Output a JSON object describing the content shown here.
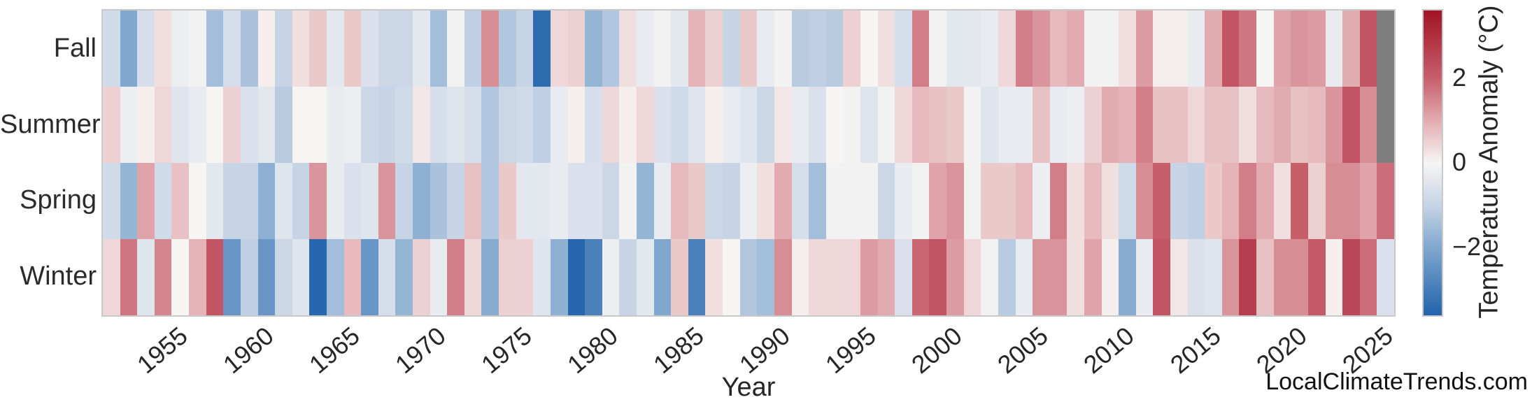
{
  "figure": {
    "watermark": "LocalClimateTrends.com"
  },
  "chart_data": {
    "type": "heatmap",
    "title": "",
    "xlabel": "Year",
    "ylabel": "",
    "rows": [
      "Fall",
      "Summer",
      "Spring",
      "Winter"
    ],
    "years": [
      1951,
      1952,
      1953,
      1954,
      1955,
      1956,
      1957,
      1958,
      1959,
      1960,
      1961,
      1962,
      1963,
      1964,
      1965,
      1966,
      1967,
      1968,
      1969,
      1970,
      1971,
      1972,
      1973,
      1974,
      1975,
      1976,
      1977,
      1978,
      1979,
      1980,
      1981,
      1982,
      1983,
      1984,
      1985,
      1986,
      1987,
      1988,
      1989,
      1990,
      1991,
      1992,
      1993,
      1994,
      1995,
      1996,
      1997,
      1998,
      1999,
      2000,
      2001,
      2002,
      2003,
      2004,
      2005,
      2006,
      2007,
      2008,
      2009,
      2010,
      2011,
      2012,
      2013,
      2014,
      2015,
      2016,
      2017,
      2018,
      2019,
      2020,
      2021,
      2022,
      2023,
      2024,
      2025
    ],
    "x_tick_years": [
      1955,
      1960,
      1965,
      1970,
      1975,
      1980,
      1985,
      1990,
      1995,
      2000,
      2005,
      2010,
      2015,
      2020,
      2025
    ],
    "values": [
      [
        -0.8,
        -2.0,
        -0.7,
        0.3,
        -0.2,
        -0.1,
        -1.5,
        -0.7,
        -1.4,
        0.1,
        -1.0,
        0.3,
        0.6,
        -0.4,
        0.6,
        -0.6,
        -0.9,
        -0.9,
        -0.4,
        -1.5,
        -0.1,
        -1.1,
        1.4,
        -1.3,
        -1.0,
        -3.4,
        0.4,
        0.5,
        -1.7,
        -1.3,
        0.3,
        -0.3,
        -0.1,
        -0.4,
        0.9,
        0.5,
        -1.0,
        0.6,
        -0.3,
        -0.1,
        -1.2,
        -1.1,
        -1.2,
        0.5,
        0.0,
        0.3,
        -0.7,
        1.6,
        -0.1,
        -0.4,
        -0.4,
        -0.3,
        0.4,
        1.6,
        1.3,
        0.8,
        1.0,
        -0.1,
        -0.1,
        0.3,
        1.2,
        0.1,
        0.1,
        -0.3,
        1.0,
        2.2,
        1.7,
        0.0,
        1.1,
        1.3,
        1.2,
        -0.3,
        1.0,
        2.2,
        null
      ],
      [
        0.5,
        -0.2,
        0.1,
        0.4,
        -0.5,
        -0.3,
        0.0,
        0.5,
        -0.6,
        -0.4,
        -1.2,
        0.0,
        0.0,
        -0.3,
        -0.2,
        -0.9,
        -1.0,
        -0.8,
        0.2,
        -0.7,
        -0.5,
        -0.7,
        -1.3,
        -0.9,
        -0.8,
        -1.1,
        -0.3,
        0.1,
        -0.7,
        0.4,
        0.1,
        0.4,
        -0.6,
        -0.8,
        -0.5,
        0.1,
        -0.3,
        -0.5,
        -0.9,
        0.2,
        -0.3,
        -0.6,
        0.0,
        -0.1,
        -0.5,
        -0.1,
        0.4,
        0.8,
        0.7,
        0.6,
        -0.1,
        -0.5,
        -0.3,
        -0.3,
        0.7,
        -0.3,
        -0.2,
        0.5,
        1.0,
        0.9,
        1.6,
        0.7,
        0.7,
        0.4,
        0.7,
        0.7,
        0.3,
        0.8,
        1.0,
        0.7,
        0.8,
        1.3,
        2.2,
        1.4,
        null
      ],
      [
        -0.8,
        -1.7,
        1.1,
        -0.8,
        0.7,
        0.0,
        -0.4,
        -1.0,
        -1.0,
        -1.8,
        -0.5,
        -1.0,
        1.3,
        -0.3,
        -0.6,
        -0.5,
        1.3,
        -1.0,
        -1.8,
        -1.4,
        -1.0,
        0.7,
        -1.3,
        0.6,
        -0.4,
        -0.4,
        -0.3,
        -0.6,
        -0.6,
        -0.9,
        -0.1,
        -1.7,
        -0.3,
        0.8,
        0.6,
        -0.9,
        -1.0,
        -0.2,
        0.3,
        1.0,
        -0.7,
        -1.5,
        -0.1,
        -0.1,
        -0.1,
        -0.9,
        -0.3,
        -0.1,
        1.1,
        1.3,
        -0.1,
        0.6,
        0.6,
        0.8,
        -0.2,
        1.6,
        0.3,
        0.8,
        0.3,
        -0.8,
        1.4,
        2.0,
        -1.0,
        -1.1,
        0.6,
        0.9,
        1.6,
        1.0,
        0.3,
        2.0,
        0.5,
        1.4,
        1.4,
        1.1,
        1.8
      ],
      [
        0.4,
        1.7,
        -0.5,
        1.5,
        0.0,
        0.9,
        2.2,
        -2.4,
        -1.1,
        -2.4,
        -0.9,
        -0.5,
        -3.5,
        -1.5,
        0.8,
        -2.4,
        -0.7,
        -1.7,
        0.5,
        -0.3,
        1.6,
        0.4,
        -1.9,
        0.5,
        0.5,
        -0.5,
        -1.8,
        -3.5,
        -2.9,
        -0.2,
        -1.0,
        -0.4,
        -2.0,
        0.6,
        -2.9,
        0.3,
        0.0,
        -1.3,
        -1.5,
        1.4,
        0.1,
        0.4,
        0.4,
        0.4,
        1.2,
        1.0,
        -0.6,
        1.9,
        2.2,
        1.2,
        0.4,
        -0.1,
        -1.2,
        -0.3,
        1.3,
        1.3,
        0.3,
        1.1,
        0.1,
        -1.9,
        -0.3,
        2.2,
        0.2,
        -0.6,
        -0.5,
        1.3,
        2.7,
        0.7,
        1.4,
        1.4,
        2.1,
        0.1,
        2.5,
        1.8,
        -0.6
      ]
    ],
    "colorbar": {
      "label": "Temperature Anomaly (°C)",
      "tick_values": [
        2,
        0,
        -2
      ],
      "vmin": -3.6,
      "vmax": 3.6
    },
    "colors": {
      "colormap_anchors": [
        {
          "v": -3.6,
          "c": "#2263ac"
        },
        {
          "v": -2.0,
          "c": "#80a7ce"
        },
        {
          "v": -1.0,
          "c": "#c6d4e6"
        },
        {
          "v": 0.0,
          "c": "#f7f5f4"
        },
        {
          "v": 1.0,
          "c": "#e2abb0"
        },
        {
          "v": 2.0,
          "c": "#c75f6b"
        },
        {
          "v": 3.6,
          "c": "#a21328"
        }
      ],
      "nan": "#7f7f7f",
      "border": "#c9c9c9",
      "axis_text": "#262626"
    },
    "legend_position": "right-colorbar",
    "grid": false
  }
}
